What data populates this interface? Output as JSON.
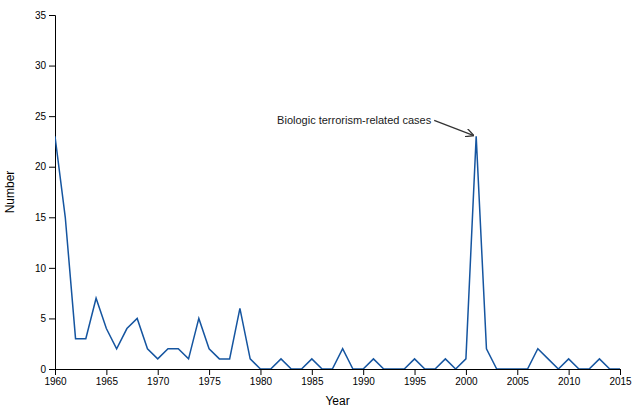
{
  "chart_data": {
    "type": "line",
    "x": [
      1960,
      1961,
      1962,
      1963,
      1964,
      1965,
      1966,
      1967,
      1968,
      1969,
      1970,
      1971,
      1972,
      1973,
      1974,
      1975,
      1976,
      1977,
      1978,
      1979,
      1980,
      1981,
      1982,
      1983,
      1984,
      1985,
      1986,
      1987,
      1988,
      1989,
      1990,
      1991,
      1992,
      1993,
      1994,
      1995,
      1996,
      1997,
      1998,
      1999,
      2000,
      2001,
      2002,
      2003,
      2004,
      2005,
      2006,
      2007,
      2008,
      2009,
      2010,
      2011,
      2012,
      2013,
      2014,
      2015
    ],
    "values": [
      23,
      15,
      3,
      3,
      7,
      4,
      2,
      4,
      5,
      2,
      1,
      2,
      2,
      1,
      5,
      2,
      1,
      1,
      6,
      1,
      0,
      0,
      1,
      0,
      0,
      1,
      0,
      0,
      2,
      0,
      0,
      1,
      0,
      0,
      0,
      1,
      0,
      0,
      1,
      0,
      1,
      23,
      2,
      0,
      0,
      0,
      0,
      2,
      1,
      0,
      1,
      0,
      0,
      1,
      0,
      0
    ],
    "color": "#1555a0",
    "xlim": [
      1960,
      2015
    ],
    "ylim": [
      0,
      35
    ],
    "xticks": [
      1960,
      1965,
      1970,
      1975,
      1980,
      1985,
      1990,
      1995,
      2000,
      2005,
      2010,
      2015
    ],
    "yticks": [
      0,
      5,
      10,
      15,
      20,
      25,
      30,
      35
    ],
    "xlabel": "Year",
    "ylabel": "Number",
    "annotations": [
      {
        "text": "Biologic terrorism-related cases",
        "x": 2001,
        "y": 23
      }
    ]
  }
}
